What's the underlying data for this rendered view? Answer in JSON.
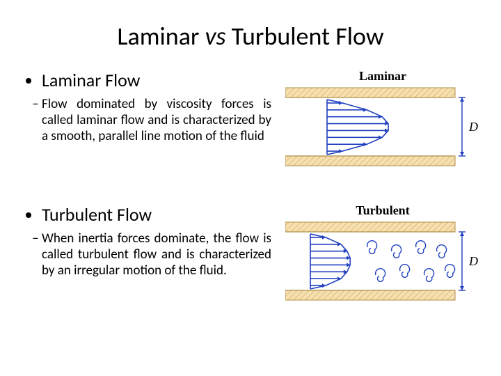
{
  "title_pre": "Laminar ",
  "title_vs": "vs",
  "title_post": " Turbulent Flow",
  "laminar": {
    "heading": "Laminar Flow",
    "desc": "Flow dominated by viscosity forces is called laminar flow and is characterized by a smooth, parallel line motion of the fluid",
    "fig_label": "Laminar",
    "d_label": "D"
  },
  "turbulent": {
    "heading": "Turbulent Flow",
    "desc": "When inertia forces dominate, the flow is called turbulent flow and is characterized by an irregular motion of the fluid.",
    "fig_label": "Turbulent",
    "d_label": "D"
  },
  "colors": {
    "pipe_fill": "#f7e0b0",
    "pipe_hatch": "#c9a85a",
    "pipe_border": "#b08f49",
    "arrow": "#2040c0",
    "bracket": "#2040c0",
    "swirl": "#2040c0"
  },
  "laminar_arrows": [
    10,
    26,
    36,
    40,
    40,
    36,
    26,
    10
  ],
  "turbulent_arrows": [
    10,
    20,
    24,
    26,
    26,
    24,
    20,
    10
  ]
}
